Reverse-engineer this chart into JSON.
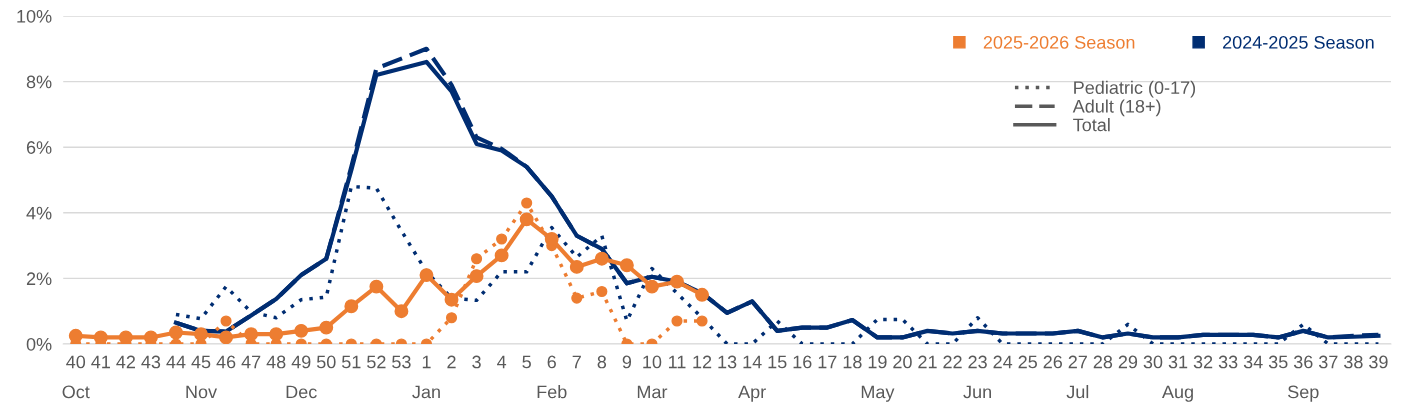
{
  "chart_data": {
    "type": "line",
    "categories": [
      "40\nOct",
      "41",
      "42",
      "43",
      "44",
      "45\nNov",
      "46",
      "47",
      "48",
      "49\nDec",
      "50",
      "51",
      "52",
      "53",
      "1\nJan",
      "2",
      "3",
      "4",
      "5",
      "6\nFeb",
      "7",
      "8",
      "9",
      "10\nMar",
      "11",
      "12",
      "13",
      "14\nApr",
      "15",
      "16",
      "17",
      "18",
      "19\nMay",
      "20",
      "21",
      "22",
      "23\nJun",
      "24",
      "25",
      "26",
      "27\nJul",
      "28",
      "29",
      "30",
      "31\nAug",
      "32",
      "33",
      "34",
      "35",
      "36\nSep",
      "37",
      "38",
      "39"
    ],
    "series": [
      {
        "color": "#002d72",
        "line_style": "dotted",
        "marker": "none",
        "values": [
          null,
          null,
          null,
          null,
          0.9,
          0.77,
          1.75,
          0.97,
          0.8,
          1.35,
          1.43,
          4.8,
          4.75,
          3.45,
          2.2,
          1.4,
          1.33,
          2.2,
          2.2,
          3.55,
          2.65,
          3.3,
          0.7,
          2.3,
          1.55,
          0.8,
          0,
          0,
          0.7,
          0,
          0,
          0,
          0.75,
          0.75,
          0,
          0,
          0.8,
          0,
          0,
          0,
          0,
          0,
          0.6,
          0,
          0,
          0,
          0,
          0,
          0,
          0.6,
          0,
          0,
          0
        ]
      },
      {
        "color": "#002d72",
        "line_style": "dashed",
        "marker": "none",
        "values": [
          null,
          null,
          null,
          null,
          0.65,
          0.4,
          0.38,
          0.87,
          1.37,
          2.1,
          2.6,
          5.4,
          8.4,
          8.7,
          9.0,
          7.9,
          6.3,
          5.95,
          5.4,
          4.5,
          3.3,
          2.9,
          1.85,
          2.05,
          1.9,
          1.55,
          0.95,
          1.3,
          0.4,
          0.5,
          0.5,
          0.73,
          0.2,
          0.2,
          0.4,
          0.32,
          0.4,
          0.32,
          0.32,
          0.32,
          0.4,
          0.2,
          0.32,
          0.2,
          0.2,
          0.28,
          0.28,
          0.28,
          0.2,
          0.4,
          0.2,
          0.25,
          0.28
        ]
      },
      {
        "name": "2024-2025 Season",
        "color": "#002d72",
        "line_style": "solid",
        "marker": "none",
        "values": [
          null,
          null,
          null,
          null,
          0.65,
          0.4,
          0.38,
          0.87,
          1.37,
          2.1,
          2.6,
          5.3,
          8.2,
          8.4,
          8.6,
          7.7,
          6.1,
          5.9,
          5.4,
          4.5,
          3.3,
          2.9,
          1.85,
          2.05,
          1.9,
          1.55,
          0.95,
          1.3,
          0.4,
          0.5,
          0.5,
          0.73,
          0.2,
          0.2,
          0.4,
          0.32,
          0.4,
          0.32,
          0.32,
          0.32,
          0.4,
          0.2,
          0.32,
          0.2,
          0.2,
          0.28,
          0.28,
          0.28,
          0.2,
          0.4,
          0.2,
          0.22,
          0.25
        ]
      },
      {
        "color": "#ed7d31",
        "line_style": "dotted",
        "marker": "circle",
        "values": [
          0,
          0,
          0,
          0,
          0,
          0,
          0.7,
          0,
          0,
          0,
          0,
          0,
          0,
          0,
          0,
          0.8,
          2.6,
          3.2,
          4.3,
          3.0,
          1.4,
          1.6,
          0,
          0,
          0.7,
          0.7,
          null,
          null,
          null,
          null,
          null,
          null,
          null,
          null,
          null,
          null,
          null,
          null,
          null,
          null,
          null,
          null,
          null,
          null,
          null,
          null,
          null,
          null,
          null,
          null,
          null,
          null,
          null
        ]
      },
      {
        "name": "2025-2026 Season",
        "color": "#ed7d31",
        "line_style": "solid",
        "marker": "circle",
        "values": [
          0.25,
          0.2,
          0.2,
          0.2,
          0.35,
          0.3,
          0.2,
          0.3,
          0.3,
          0.4,
          0.5,
          1.15,
          1.75,
          1.0,
          2.1,
          1.35,
          2.07,
          2.7,
          3.8,
          3.2,
          2.35,
          2.6,
          2.4,
          1.75,
          1.9,
          1.5,
          null,
          null,
          null,
          null,
          null,
          null,
          null,
          null,
          null,
          null,
          null,
          null,
          null,
          null,
          null,
          null,
          null,
          null,
          null,
          null,
          null,
          null,
          null,
          null,
          null,
          null,
          null
        ]
      }
    ],
    "annotations": [
      "Pediatric (0-17)",
      "Adult (18+)",
      "Total"
    ],
    "ylim": [
      0,
      10
    ],
    "yticks": [
      {
        "value": 0,
        "label": "0%"
      },
      {
        "value": 2,
        "label": "2%"
      },
      {
        "value": 4,
        "label": "4%"
      },
      {
        "value": 6,
        "label": "6%"
      },
      {
        "value": 8,
        "label": "8%"
      },
      {
        "value": 10,
        "label": "10%"
      }
    ],
    "grid": "y",
    "legend": "top right"
  }
}
